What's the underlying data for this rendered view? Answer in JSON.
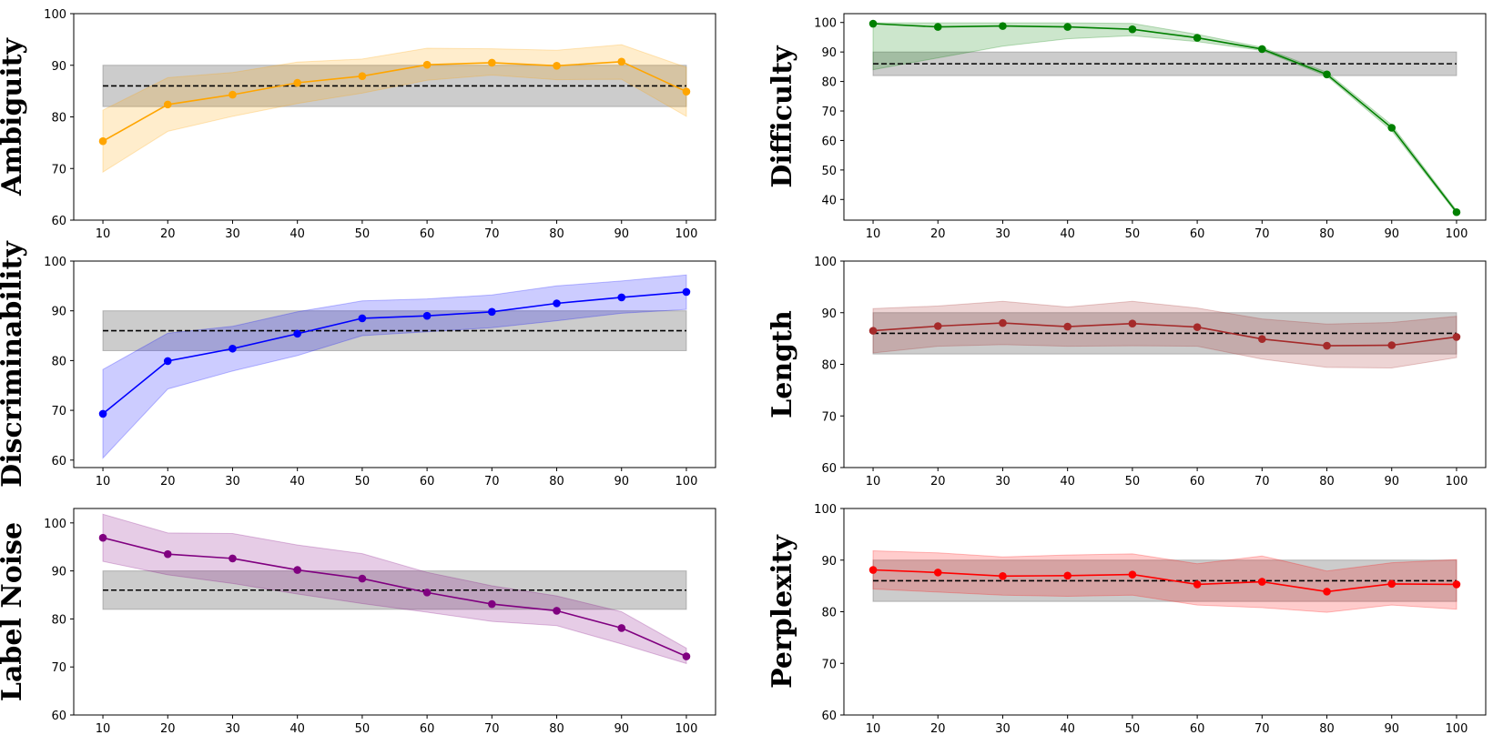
{
  "figure": {
    "baseline": {
      "mean": 86,
      "low": 82,
      "high": 90,
      "band_color": "#808080"
    }
  },
  "chart_data": [
    {
      "type": "line",
      "ylabel": "Ambiguity",
      "color": "#FFA500",
      "x": [
        10,
        20,
        30,
        40,
        50,
        60,
        70,
        80,
        90,
        100
      ],
      "y": [
        75.3,
        82.4,
        84.3,
        86.6,
        87.9,
        90.1,
        90.5,
        89.9,
        90.7,
        84.9
      ],
      "band_lower": [
        69.3,
        77.2,
        80.1,
        82.6,
        84.6,
        87.1,
        88.1,
        87.2,
        87.3,
        80.1
      ],
      "band_upper": [
        81.3,
        87.6,
        88.6,
        90.6,
        91.2,
        93.3,
        93.2,
        92.9,
        94.0,
        89.6
      ],
      "ylim": [
        60,
        100
      ],
      "yticks": [
        60,
        70,
        80,
        90,
        100
      ],
      "xticks": [
        10,
        20,
        30,
        40,
        50,
        60,
        70,
        80,
        90,
        100
      ]
    },
    {
      "type": "line",
      "ylabel": "Difficulty",
      "color": "#008000",
      "x": [
        10,
        20,
        30,
        40,
        50,
        60,
        70,
        80,
        90,
        100
      ],
      "y": [
        99.6,
        98.5,
        98.8,
        98.5,
        97.7,
        94.8,
        91.0,
        82.4,
        64.3,
        35.7
      ],
      "band_lower": [
        84.0,
        88.0,
        92.0,
        94.5,
        95.5,
        93.5,
        90.5,
        81.8,
        63.3,
        35.2
      ],
      "band_upper": [
        99.9,
        99.9,
        99.9,
        99.9,
        99.7,
        96.0,
        91.6,
        83.1,
        65.3,
        36.3
      ],
      "ylim": [
        33,
        103
      ],
      "yticks": [
        40,
        50,
        60,
        70,
        80,
        90,
        100
      ],
      "xticks": [
        10,
        20,
        30,
        40,
        50,
        60,
        70,
        80,
        90,
        100
      ]
    },
    {
      "type": "line",
      "ylabel": "Discriminability",
      "color": "#0000FF",
      "x": [
        10,
        20,
        30,
        40,
        50,
        60,
        70,
        80,
        90,
        100
      ],
      "y": [
        69.3,
        79.9,
        82.4,
        85.4,
        88.5,
        89.0,
        89.8,
        91.5,
        92.7,
        93.8
      ],
      "band_lower": [
        60.4,
        74.3,
        77.9,
        81.0,
        85.0,
        85.8,
        86.6,
        88.0,
        89.5,
        90.3
      ],
      "band_upper": [
        78.2,
        85.5,
        86.9,
        89.8,
        92.0,
        92.4,
        93.2,
        95.0,
        96.0,
        97.2
      ],
      "ylim": [
        58.5,
        100
      ],
      "yticks": [
        60,
        70,
        80,
        90,
        100
      ],
      "xticks": [
        10,
        20,
        30,
        40,
        50,
        60,
        70,
        80,
        90,
        100
      ]
    },
    {
      "type": "line",
      "ylabel": "Length",
      "color": "#A52A2A",
      "x": [
        10,
        20,
        30,
        40,
        50,
        60,
        70,
        80,
        90,
        100
      ],
      "y": [
        86.5,
        87.4,
        88.0,
        87.3,
        87.9,
        87.2,
        84.9,
        83.6,
        83.7,
        85.3
      ],
      "band_lower": [
        82.2,
        83.5,
        83.8,
        83.5,
        83.6,
        83.5,
        81.0,
        79.4,
        79.3,
        81.3
      ],
      "band_upper": [
        90.8,
        91.3,
        92.2,
        91.1,
        92.2,
        90.9,
        88.8,
        87.8,
        88.1,
        89.3
      ],
      "ylim": [
        60,
        100
      ],
      "yticks": [
        60,
        70,
        80,
        90,
        100
      ],
      "xticks": [
        10,
        20,
        30,
        40,
        50,
        60,
        70,
        80,
        90,
        100
      ]
    },
    {
      "type": "line",
      "ylabel": "Label Noise",
      "color": "#800080",
      "x": [
        10,
        20,
        30,
        40,
        50,
        60,
        70,
        80,
        90,
        100
      ],
      "y": [
        96.9,
        93.5,
        92.6,
        90.2,
        88.4,
        85.5,
        83.1,
        81.7,
        78.1,
        72.2
      ],
      "band_lower": [
        92.0,
        89.2,
        87.4,
        85.2,
        83.2,
        81.4,
        79.5,
        78.6,
        74.8,
        70.7
      ],
      "band_upper": [
        101.8,
        97.9,
        97.8,
        95.4,
        93.6,
        89.7,
        86.9,
        84.8,
        81.5,
        73.9
      ],
      "ylim": [
        60,
        103
      ],
      "yticks": [
        60,
        70,
        80,
        90,
        100
      ],
      "xticks": [
        10,
        20,
        30,
        40,
        50,
        60,
        70,
        80,
        90,
        100
      ]
    },
    {
      "type": "line",
      "ylabel": "Perplexity",
      "color": "#FF0000",
      "x": [
        10,
        20,
        30,
        40,
        50,
        60,
        70,
        80,
        90,
        100
      ],
      "y": [
        88.1,
        87.6,
        86.9,
        87.0,
        87.2,
        85.3,
        85.8,
        83.9,
        85.4,
        85.3
      ],
      "band_lower": [
        84.4,
        83.8,
        83.2,
        83.0,
        83.2,
        81.3,
        80.8,
        79.9,
        81.3,
        80.5
      ],
      "band_upper": [
        91.8,
        91.4,
        90.6,
        91.0,
        91.2,
        89.3,
        90.8,
        87.9,
        89.5,
        90.1
      ],
      "ylim": [
        60,
        100
      ],
      "yticks": [
        60,
        70,
        80,
        90,
        100
      ],
      "xticks": [
        10,
        20,
        30,
        40,
        50,
        60,
        70,
        80,
        90,
        100
      ]
    }
  ]
}
